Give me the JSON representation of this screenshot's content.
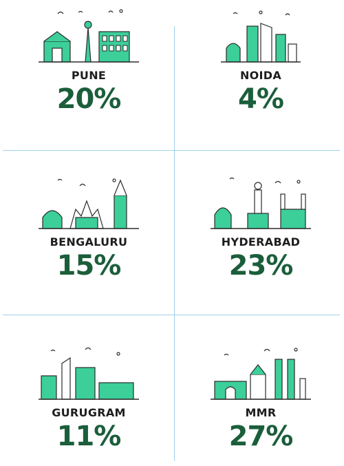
{
  "colors": {
    "accent_green": "#1b5e3b",
    "mint": "#3ccf9a",
    "outline": "#2b2b2b",
    "divider": "#9fd0e8"
  },
  "cities": [
    {
      "name": "PUNE",
      "share": "20%",
      "icon": "pune-skyline-icon"
    },
    {
      "name": "NOIDA",
      "share": "4%",
      "icon": "noida-skyline-icon"
    },
    {
      "name": "BENGALURU",
      "share": "15%",
      "icon": "bengaluru-skyline-icon"
    },
    {
      "name": "HYDERABAD",
      "share": "23%",
      "icon": "hyderabad-skyline-icon"
    },
    {
      "name": "GURUGRAM",
      "share": "11%",
      "icon": "gurugram-skyline-icon"
    },
    {
      "name": "MMR",
      "share": "27%",
      "icon": "mmr-skyline-icon"
    }
  ]
}
